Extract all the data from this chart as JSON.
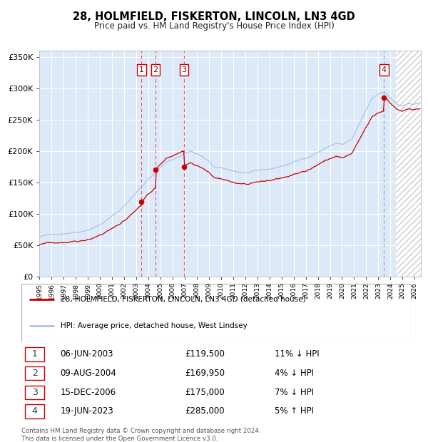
{
  "title": "28, HOLMFIELD, FISKERTON, LINCOLN, LN3 4GD",
  "subtitle": "Price paid vs. HM Land Registry's House Price Index (HPI)",
  "ylabel_ticks": [
    "£0",
    "£50K",
    "£100K",
    "£150K",
    "£200K",
    "£250K",
    "£300K",
    "£350K"
  ],
  "ytick_vals": [
    0,
    50000,
    100000,
    150000,
    200000,
    250000,
    300000,
    350000
  ],
  "ylim": [
    0,
    360000
  ],
  "xlim_start": 1995.0,
  "xlim_end": 2026.5,
  "background_color": "#dce9f8",
  "grid_color": "#ffffff",
  "hpi_line_color": "#aac4e8",
  "price_line_color": "#cc0000",
  "sale_dot_color": "#cc0000",
  "sale_dates_decimal": [
    2003.43,
    2004.6,
    2006.96,
    2023.46
  ],
  "sale_prices": [
    119500,
    169950,
    175000,
    285000
  ],
  "sale_labels": [
    "1",
    "2",
    "3",
    "4"
  ],
  "legend_line1": "28, HOLMFIELD, FISKERTON, LINCOLN, LN3 4GD (detached house)",
  "legend_line2": "HPI: Average price, detached house, West Lindsey",
  "table_rows": [
    [
      "1",
      "06-JUN-2003",
      "£119,500",
      "11% ↓ HPI"
    ],
    [
      "2",
      "09-AUG-2004",
      "£169,950",
      "4% ↓ HPI"
    ],
    [
      "3",
      "15-DEC-2006",
      "£175,000",
      "7% ↓ HPI"
    ],
    [
      "4",
      "19-JUN-2023",
      "£285,000",
      "5% ↑ HPI"
    ]
  ],
  "footer_text": "Contains HM Land Registry data © Crown copyright and database right 2024.\nThis data is licensed under the Open Government Licence v3.0.",
  "hatch_region_start": 2024.46,
  "hatch_region_end": 2026.5,
  "vline_colors_13": "#ff4444",
  "vline_color_4": "#9999bb"
}
